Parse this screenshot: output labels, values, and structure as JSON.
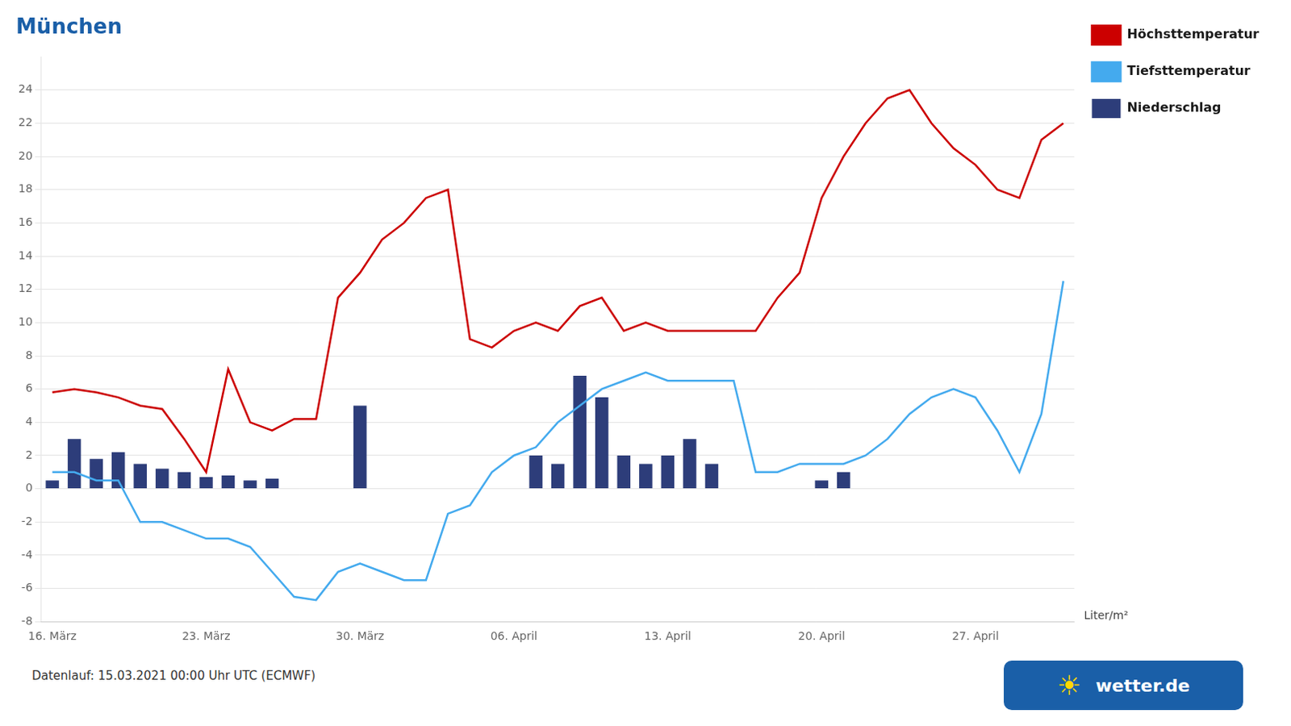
{
  "chart_data": {
    "type": "line",
    "title": "München",
    "categories": [
      "16. März",
      null,
      null,
      null,
      null,
      null,
      null,
      "23. März",
      null,
      null,
      null,
      null,
      null,
      null,
      "30. März",
      null,
      null,
      null,
      null,
      null,
      null,
      "06. April",
      null,
      null,
      null,
      null,
      null,
      null,
      "13. April",
      null,
      null,
      null,
      null,
      null,
      null,
      "20. April",
      null,
      null,
      null,
      null,
      null,
      null,
      "27. April",
      null,
      null,
      null,
      null
    ],
    "series": [
      {
        "name": "Höchsttemperatur",
        "type": "line",
        "color": "#cc0000",
        "values": [
          5.8,
          6.0,
          5.8,
          5.5,
          5.0,
          4.8,
          3.0,
          1.0,
          7.2,
          4.0,
          3.5,
          4.2,
          4.2,
          11.5,
          13.0,
          15.0,
          16.0,
          17.5,
          18.0,
          9.0,
          8.5,
          9.5,
          10.0,
          9.5,
          11.0,
          11.5,
          9.5,
          10.0,
          9.5,
          9.5,
          9.5,
          9.5,
          9.5,
          11.5,
          13.0,
          17.5,
          20.0,
          22.0,
          23.5,
          24.0,
          22.0,
          20.5,
          19.5,
          18.0,
          17.5,
          21.0,
          22.0
        ]
      },
      {
        "name": "Tiefsttemperatur",
        "type": "line",
        "color": "#44aaee",
        "values": [
          1.0,
          1.0,
          0.5,
          0.5,
          -2.0,
          -2.0,
          -2.5,
          -3.0,
          -3.0,
          -3.5,
          -5.0,
          -6.5,
          -6.7,
          -5.0,
          -4.5,
          -5.0,
          -5.5,
          -5.5,
          -1.5,
          -1.0,
          1.0,
          2.0,
          2.5,
          4.0,
          5.0,
          6.0,
          6.5,
          7.0,
          6.5,
          6.5,
          6.5,
          6.5,
          1.0,
          1.0,
          1.5,
          1.5,
          1.5,
          2.0,
          3.0,
          4.5,
          5.5,
          6.0,
          5.5,
          3.5,
          1.0,
          4.5,
          12.5
        ]
      },
      {
        "name": "Niederschlag",
        "type": "bar",
        "color": "#2d3d7a",
        "values": [
          0.5,
          3.0,
          1.8,
          2.2,
          1.5,
          1.2,
          1.0,
          0.7,
          0.8,
          0.5,
          0.6,
          null,
          null,
          null,
          5.0,
          null,
          null,
          null,
          null,
          null,
          null,
          null,
          2.0,
          1.5,
          6.8,
          5.5,
          2.0,
          1.5,
          2.0,
          3.0,
          1.5,
          null,
          null,
          null,
          null,
          0.5,
          1.0,
          null,
          null,
          null,
          null,
          null,
          null,
          null,
          null,
          null,
          null
        ]
      }
    ],
    "ylim": [
      -8,
      26
    ],
    "yticks": [
      -8,
      -6,
      -4,
      -2,
      0,
      2,
      4,
      6,
      8,
      10,
      12,
      14,
      16,
      18,
      20,
      22,
      24
    ],
    "grid": true,
    "legend": "right",
    "annotations": [
      "Liter/m²",
      "Datenlauf: 15.03.2021 00:00 Uhr UTC (ECMWF)",
      "☀",
      "wetter.de"
    ]
  }
}
